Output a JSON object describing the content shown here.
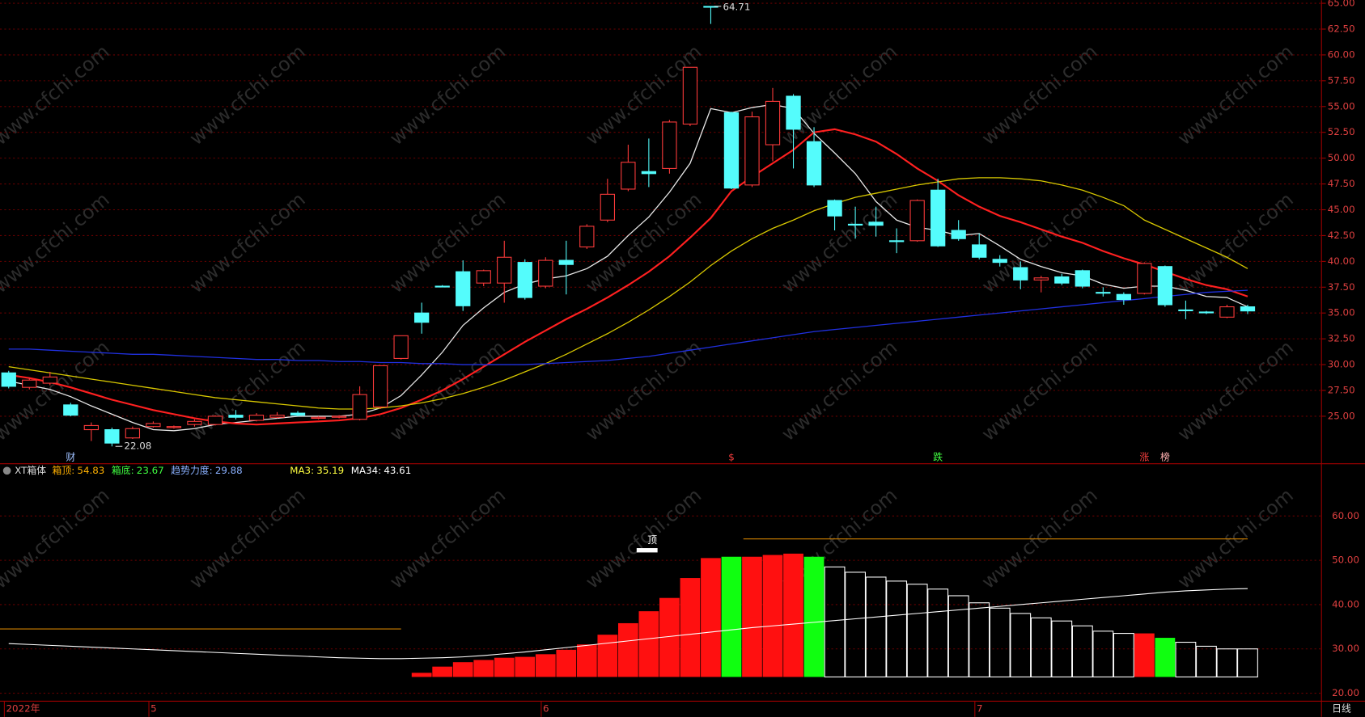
{
  "chart_data": {
    "type": "candlestick",
    "watermark": "www.cfchi.com",
    "ylim": [
      20.4,
      65.3
    ],
    "yticks": [
      {
        "value": 25,
        "label": "25.00"
      },
      {
        "value": 27.5,
        "label": "27.50"
      },
      {
        "value": 30,
        "label": "30.00"
      },
      {
        "value": 32.5,
        "label": "32.50"
      },
      {
        "value": 35,
        "label": "35.00"
      },
      {
        "value": 37.5,
        "label": "37.50"
      },
      {
        "value": 40,
        "label": "40.00"
      },
      {
        "value": 42.5,
        "label": "42.50"
      },
      {
        "value": 45,
        "label": "45.00"
      },
      {
        "value": 47.5,
        "label": "47.50"
      },
      {
        "value": 50,
        "label": "50.00"
      },
      {
        "value": 52.5,
        "label": "52.50"
      },
      {
        "value": 55,
        "label": "55.00"
      },
      {
        "value": 57.5,
        "label": "57.50"
      },
      {
        "value": 60,
        "label": "60.00"
      },
      {
        "value": 62.5,
        "label": "62.50"
      },
      {
        "value": 65,
        "label": "65.00"
      }
    ],
    "grid": true,
    "up_color": "#ff3b3b",
    "down_color": "#54fcfc",
    "open": [
      29.2,
      27.8,
      28.2,
      26.1,
      23.7,
      23.7,
      22.9,
      24.0,
      23.9,
      24.2,
      24.2,
      25.1,
      24.6,
      24.9,
      25.3,
      24.8,
      24.9,
      24.7,
      25.9,
      30.6,
      35.0,
      37.6,
      39.0,
      37.9,
      37.9,
      39.9,
      37.6,
      40.1,
      41.4,
      44.0,
      47.0,
      48.7,
      49.0,
      53.3,
      64.7,
      54.4,
      47.4,
      51.3,
      56.0,
      51.6,
      45.9,
      43.6,
      43.8,
      42.0,
      42.0,
      46.9,
      43.0,
      41.6,
      40.2,
      39.4,
      38.2,
      38.5,
      39.1,
      37.0,
      36.8,
      36.9,
      39.5,
      35.3,
      35.1,
      34.6,
      35.6
    ],
    "high": [
      29.4,
      28.7,
      29.3,
      26.3,
      24.4,
      23.9,
      24.0,
      24.5,
      24.1,
      24.7,
      25.1,
      25.6,
      25.3,
      25.4,
      25.5,
      25.0,
      25.1,
      27.9,
      29.9,
      32.8,
      36.0,
      37.7,
      40.1,
      39.2,
      42.0,
      40.2,
      40.4,
      42.0,
      43.6,
      48.0,
      51.3,
      51.9,
      53.7,
      58.8,
      64.71,
      54.5,
      54.5,
      56.8,
      56.2,
      53.0,
      46.0,
      45.3,
      45.3,
      43.2,
      46.0,
      48.0,
      44.0,
      42.7,
      40.6,
      40.0,
      38.6,
      38.8,
      39.2,
      37.5,
      37.0,
      39.9,
      39.6,
      36.2,
      35.2,
      35.8,
      35.8
    ],
    "low": [
      27.7,
      27.6,
      28.0,
      25.0,
      22.6,
      22.08,
      22.8,
      23.9,
      23.8,
      24.0,
      24.1,
      24.7,
      24.5,
      24.8,
      25.0,
      24.7,
      24.8,
      24.6,
      25.7,
      30.5,
      33.0,
      37.5,
      35.2,
      37.6,
      36.0,
      36.3,
      37.4,
      36.8,
      41.2,
      43.8,
      46.8,
      47.2,
      48.5,
      53.1,
      63.0,
      47.0,
      47.2,
      49.7,
      49.0,
      47.2,
      43.0,
      42.2,
      42.4,
      40.8,
      41.9,
      41.4,
      42.0,
      40.2,
      39.5,
      37.3,
      37.0,
      37.7,
      37.4,
      36.6,
      35.8,
      36.8,
      35.6,
      34.4,
      34.9,
      34.5,
      34.9
    ],
    "close": [
      27.9,
      28.5,
      28.8,
      25.1,
      24.1,
      22.4,
      23.8,
      24.3,
      24.0,
      24.5,
      25.0,
      24.9,
      25.1,
      25.1,
      25.1,
      24.9,
      25.0,
      27.1,
      29.9,
      32.8,
      34.1,
      37.6,
      35.7,
      39.1,
      40.4,
      36.5,
      40.1,
      39.7,
      43.4,
      46.5,
      49.6,
      48.5,
      53.5,
      58.8,
      64.7,
      47.1,
      54.0,
      55.5,
      52.8,
      47.4,
      44.4,
      43.6,
      43.5,
      42.0,
      45.9,
      41.5,
      42.2,
      40.4,
      39.9,
      38.2,
      38.4,
      37.9,
      37.6,
      37.0,
      36.3,
      39.8,
      35.8,
      35.3,
      35.1,
      35.6,
      35.2
    ],
    "lines": [
      {
        "color": "#e8e8e8",
        "values": [
          28.4,
          28.0,
          27.6,
          26.9,
          26.0,
          25.2,
          24.4,
          23.7,
          23.6,
          23.8,
          24.2,
          24.4,
          24.6,
          24.8,
          25.0,
          25.0,
          25.0,
          25.2,
          25.8,
          27.0,
          29.0,
          31.2,
          33.8,
          35.5,
          37.0,
          37.8,
          38.3,
          38.6,
          39.3,
          40.5,
          42.5,
          44.3,
          46.7,
          49.5,
          54.8,
          54.4,
          54.9,
          55.2,
          54.8,
          52.4,
          50.5,
          48.5,
          45.8,
          44.0,
          43.3,
          43.0,
          42.5,
          42.7,
          41.5,
          40.2,
          39.5,
          38.9,
          38.6,
          37.8,
          37.4,
          37.6,
          37.6,
          37.2,
          36.6,
          36.5,
          35.6
        ]
      },
      {
        "color": "#ff2020",
        "values": [
          29.0,
          28.7,
          28.3,
          27.8,
          27.2,
          26.6,
          26.1,
          25.6,
          25.2,
          24.8,
          24.5,
          24.3,
          24.2,
          24.3,
          24.4,
          24.5,
          24.6,
          24.8,
          25.2,
          25.8,
          26.6,
          27.5,
          28.6,
          29.8,
          31.0,
          32.2,
          33.3,
          34.4,
          35.4,
          36.5,
          37.7,
          39.0,
          40.5,
          42.3,
          44.2,
          46.8,
          48.2,
          49.5,
          50.8,
          52.5,
          52.8,
          52.3,
          51.6,
          50.4,
          49.0,
          47.8,
          46.4,
          45.3,
          44.4,
          43.8,
          43.1,
          42.4,
          41.8,
          41.0,
          40.3,
          39.7,
          39.0,
          38.3,
          37.7,
          37.3,
          36.6
        ]
      },
      {
        "color": "#d8c800",
        "values": [
          29.8,
          29.5,
          29.2,
          28.9,
          28.6,
          28.3,
          28.0,
          27.7,
          27.4,
          27.1,
          26.8,
          26.6,
          26.4,
          26.2,
          26.0,
          25.8,
          25.7,
          25.7,
          25.8,
          26.0,
          26.3,
          26.7,
          27.2,
          27.8,
          28.5,
          29.3,
          30.1,
          31.0,
          32.0,
          33.0,
          34.1,
          35.3,
          36.6,
          38.0,
          39.6,
          41.0,
          42.2,
          43.2,
          44.0,
          44.9,
          45.6,
          46.2,
          46.6,
          47.0,
          47.4,
          47.7,
          48.0,
          48.1,
          48.1,
          48.0,
          47.8,
          47.4,
          46.9,
          46.2,
          45.4,
          44.0,
          43.1,
          42.2,
          41.3,
          40.4,
          39.3
        ]
      },
      {
        "color": "#2030e0",
        "values": [
          31.5,
          31.5,
          31.4,
          31.3,
          31.2,
          31.1,
          31.0,
          31.0,
          30.9,
          30.8,
          30.7,
          30.6,
          30.5,
          30.5,
          30.4,
          30.4,
          30.3,
          30.3,
          30.2,
          30.2,
          30.1,
          30.1,
          30.0,
          30.0,
          30.0,
          30.0,
          30.1,
          30.2,
          30.3,
          30.4,
          30.6,
          30.8,
          31.1,
          31.4,
          31.7,
          32.0,
          32.3,
          32.6,
          32.9,
          33.2,
          33.4,
          33.6,
          33.8,
          34.0,
          34.2,
          34.4,
          34.6,
          34.8,
          35.0,
          35.2,
          35.4,
          35.6,
          35.8,
          36.0,
          36.2,
          36.4,
          36.6,
          36.8,
          37.0,
          37.1,
          37.2
        ]
      }
    ],
    "tags": [
      {
        "index": 3,
        "text": "财",
        "color": "#9fc0ff"
      },
      {
        "index": 35,
        "text": "$",
        "color": "#ff4040"
      },
      {
        "index": 45,
        "text": "跌",
        "color": "#40ff40"
      },
      {
        "index": 55,
        "text": "涨",
        "color": "#ff4040"
      },
      {
        "index": 56,
        "text": "榜",
        "color": "#ffb0b0"
      }
    ],
    "x_labels": [
      {
        "index": 0,
        "label": "2022年"
      },
      {
        "index": 7,
        "label": "5"
      },
      {
        "index": 26,
        "label": "6"
      },
      {
        "index": 47,
        "label": "7"
      }
    ],
    "period": "日线",
    "bottom": {
      "name": "XT箱体",
      "header": [
        {
          "label": "箱顶:",
          "value": 54.83,
          "color": "#ffb000"
        },
        {
          "label": "箱底:",
          "value": 23.67,
          "color": "#40ff40"
        },
        {
          "label": "趋势力度:",
          "value": 29.88,
          "color": "#8ab0ff"
        },
        {
          "label": "MA3:",
          "value": 35.19,
          "color": "#ffff40"
        },
        {
          "label": "MA34:",
          "value": 43.61,
          "color": "#ffffff"
        }
      ],
      "ylim": [
        18.4,
        71.4
      ],
      "yticks": [
        {
          "value": 20,
          "label": "20.00"
        },
        {
          "value": 30,
          "label": "30.00"
        },
        {
          "value": 40,
          "label": "40.00"
        },
        {
          "value": 50,
          "label": "50.00"
        },
        {
          "value": 60,
          "label": "60.00"
        }
      ],
      "bars": [
        null,
        null,
        null,
        null,
        null,
        null,
        null,
        null,
        null,
        null,
        null,
        null,
        null,
        null,
        null,
        null,
        null,
        null,
        null,
        null,
        24.6,
        26.0,
        27.0,
        27.5,
        28.0,
        28.2,
        28.8,
        29.8,
        31.0,
        33.2,
        35.8,
        38.5,
        41.5,
        46.0,
        50.5,
        50.8,
        50.8,
        51.2,
        51.5,
        50.8,
        48.5,
        47.3,
        46.2,
        45.3,
        44.6,
        43.5,
        42.0,
        40.4,
        39.2,
        38.0,
        37.0,
        36.3,
        35.2,
        34.0,
        33.5,
        33.5,
        32.5,
        31.5,
        30.6,
        30.0,
        30.0
      ],
      "bar_colors": [
        null,
        null,
        null,
        null,
        null,
        null,
        null,
        null,
        null,
        null,
        null,
        null,
        null,
        null,
        null,
        null,
        null,
        null,
        null,
        null,
        "#ff1010",
        "#ff1010",
        "#ff1010",
        "#ff1010",
        "#ff1010",
        "#ff1010",
        "#ff1010",
        "#ff1010",
        "#ff1010",
        "#ff1010",
        "#ff1010",
        "#ff1010",
        "#ff1010",
        "#ff1010",
        "#ff1010",
        "#10ff10",
        "#ff1010",
        "#ff1010",
        "#ff1010",
        "#10ff10",
        "#ffffff",
        "#ffffff",
        "#ffffff",
        "#ffffff",
        "#ffffff",
        "#ffffff",
        "#ffffff",
        "#ffffff",
        "#ffffff",
        "#ffffff",
        "#ffffff",
        "#ffffff",
        "#ffffff",
        "#ffffff",
        "#ffffff",
        "#ff1010",
        "#10ff10",
        "#ffffff",
        "#ffffff",
        "#ffffff",
        "#ffffff"
      ],
      "levels": [
        {
          "value": 54.83,
          "from": 36,
          "to": 60
        },
        {
          "value": 34.5,
          "from": 0,
          "to": 19
        }
      ],
      "level_color": "#d08000",
      "ma34": {
        "color": "#ffffff",
        "values": [
          31.2,
          31.0,
          30.8,
          30.6,
          30.4,
          30.2,
          30.0,
          29.8,
          29.6,
          29.4,
          29.2,
          29.0,
          28.8,
          28.6,
          28.4,
          28.2,
          28.0,
          27.9,
          27.8,
          27.8,
          27.9,
          28.0,
          28.2,
          28.5,
          28.9,
          29.3,
          29.8,
          30.3,
          30.8,
          31.3,
          31.8,
          32.3,
          32.8,
          33.3,
          33.8,
          34.3,
          34.8,
          35.2,
          35.6,
          36.0,
          36.4,
          36.8,
          37.2,
          37.6,
          38.0,
          38.4,
          38.8,
          39.2,
          39.6,
          40.0,
          40.4,
          40.8,
          41.2,
          41.6,
          42.0,
          42.4,
          42.8,
          43.1,
          43.3,
          43.5,
          43.61
        ]
      },
      "marker": {
        "index": 31,
        "text": "顶"
      }
    }
  }
}
